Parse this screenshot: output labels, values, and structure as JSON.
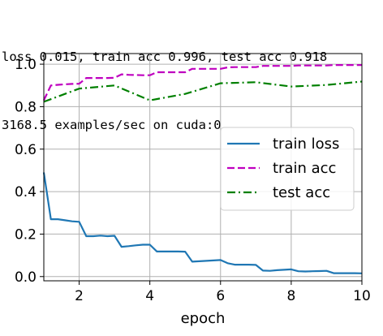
{
  "console": {
    "line1": "loss 0.015, train acc 0.996, test acc 0.918",
    "line2": "3168.5 examples/sec on cuda:0"
  },
  "chart_data": {
    "type": "line",
    "title": "",
    "xlabel": "epoch",
    "ylabel": "",
    "xlim": [
      1,
      10
    ],
    "ylim": [
      -0.02,
      1.05
    ],
    "xticks": [
      2,
      4,
      6,
      8,
      10
    ],
    "yticks": [
      0.0,
      0.2,
      0.4,
      0.6,
      0.8,
      1.0
    ],
    "xtick_labels": [
      "2",
      "4",
      "6",
      "8",
      "10"
    ],
    "ytick_labels": [
      "0.0",
      "0.2",
      "0.4",
      "0.6",
      "0.8",
      "1.0"
    ],
    "grid": true,
    "legend_position": "center-right",
    "series": [
      {
        "name": "train loss",
        "color": "#1f77b4",
        "style": "solid",
        "x": [
          1.0,
          1.2,
          1.4,
          1.6,
          1.8,
          2.0,
          2.2,
          2.4,
          2.6,
          2.8,
          3.0,
          3.2,
          3.4,
          3.6,
          3.8,
          4.0,
          4.2,
          4.4,
          4.6,
          4.8,
          5.0,
          5.2,
          5.4,
          5.6,
          5.8,
          6.0,
          6.2,
          6.4,
          6.6,
          6.8,
          7.0,
          7.2,
          7.4,
          7.6,
          7.8,
          8.0,
          8.2,
          8.4,
          8.6,
          8.8,
          9.0,
          9.2,
          9.4,
          9.6,
          9.8,
          10.0
        ],
        "y": [
          0.49,
          0.27,
          0.27,
          0.265,
          0.26,
          0.258,
          0.19,
          0.19,
          0.193,
          0.19,
          0.192,
          0.14,
          0.143,
          0.147,
          0.15,
          0.15,
          0.118,
          0.118,
          0.118,
          0.118,
          0.117,
          0.07,
          0.072,
          0.074,
          0.076,
          0.078,
          0.063,
          0.056,
          0.056,
          0.056,
          0.055,
          0.028,
          0.027,
          0.03,
          0.032,
          0.034,
          0.025,
          0.024,
          0.025,
          0.026,
          0.027,
          0.016,
          0.016,
          0.016,
          0.016,
          0.015
        ]
      },
      {
        "name": "train acc",
        "color": "#bf00bf",
        "style": "dashed",
        "x": [
          1.0,
          1.2,
          1.4,
          1.6,
          1.8,
          2.0,
          2.2,
          2.4,
          2.6,
          2.8,
          3.0,
          3.2,
          3.4,
          3.6,
          3.8,
          4.0,
          4.2,
          4.4,
          4.6,
          4.8,
          5.0,
          5.2,
          5.4,
          5.6,
          5.8,
          6.0,
          6.2,
          6.4,
          6.6,
          6.8,
          7.0,
          7.2,
          7.4,
          7.6,
          7.8,
          8.0,
          8.2,
          8.4,
          8.6,
          8.8,
          9.0,
          9.2,
          9.4,
          9.6,
          9.8,
          10.0
        ],
        "y": [
          0.83,
          0.9,
          0.903,
          0.905,
          0.907,
          0.908,
          0.935,
          0.935,
          0.935,
          0.935,
          0.936,
          0.952,
          0.95,
          0.949,
          0.948,
          0.948,
          0.962,
          0.962,
          0.962,
          0.962,
          0.962,
          0.978,
          0.978,
          0.978,
          0.978,
          0.978,
          0.985,
          0.986,
          0.986,
          0.986,
          0.986,
          0.992,
          0.992,
          0.992,
          0.992,
          0.992,
          0.994,
          0.994,
          0.994,
          0.994,
          0.994,
          0.996,
          0.996,
          0.996,
          0.996,
          0.996
        ]
      },
      {
        "name": "test acc",
        "color": "#008000",
        "style": "dashdot",
        "x": [
          1,
          2,
          3,
          4,
          5,
          6,
          7,
          8,
          9,
          10
        ],
        "y": [
          0.823,
          0.885,
          0.9,
          0.83,
          0.86,
          0.91,
          0.915,
          0.895,
          0.902,
          0.918
        ]
      }
    ]
  }
}
